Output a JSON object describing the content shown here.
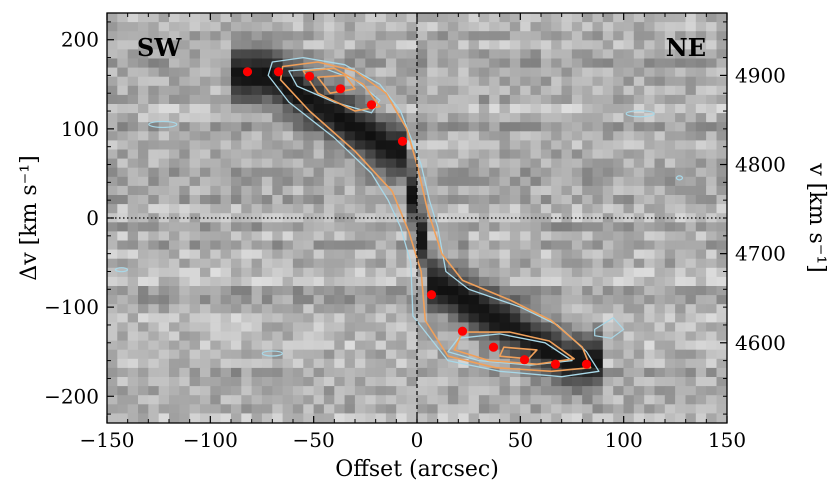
{
  "chart_data": {
    "type": "scatter",
    "title": "",
    "xlabel": "Offset (arcsec)",
    "ylabel_left": "Δv [km s⁻¹]",
    "ylabel_right": "v [km s⁻¹]",
    "xlim": [
      -150,
      150
    ],
    "ylim": [
      -230,
      230
    ],
    "y2lim": [
      4510,
      4970
    ],
    "x_ticks": [
      -150,
      -100,
      -50,
      0,
      50,
      100,
      150
    ],
    "x_tick_labels": [
      "−150",
      "−100",
      "−50",
      "0",
      "50",
      "100",
      "150"
    ],
    "y_ticks": [
      -200,
      -100,
      0,
      100,
      200
    ],
    "y_tick_labels": [
      "−200",
      "−100",
      "0",
      "100",
      "200"
    ],
    "y2_ticks": [
      4600,
      4700,
      4800,
      4900
    ],
    "y2_tick_labels": [
      "4600",
      "4700",
      "4800",
      "4900"
    ],
    "corner_labels": {
      "left": "SW",
      "right": "NE"
    },
    "reference_lines": [
      {
        "orientation": "vertical",
        "value": 0,
        "style": "dashed"
      },
      {
        "orientation": "horizontal",
        "value": 0,
        "style": "dotted"
      }
    ],
    "background": "grayscale position-velocity diagram",
    "contour_colors": {
      "data": "#a8d8e8",
      "model": "#f0a05a"
    },
    "series": [
      {
        "name": "rotation curve points",
        "color": "#ff0000",
        "points": [
          {
            "x": -82,
            "y": 164
          },
          {
            "x": -67,
            "y": 164
          },
          {
            "x": -52,
            "y": 159
          },
          {
            "x": -37,
            "y": 145
          },
          {
            "x": -22,
            "y": 127
          },
          {
            "x": -7,
            "y": 86
          },
          {
            "x": 7,
            "y": -86
          },
          {
            "x": 22,
            "y": -127
          },
          {
            "x": 37,
            "y": -145
          },
          {
            "x": 52,
            "y": -159
          },
          {
            "x": 67,
            "y": -164
          },
          {
            "x": 82,
            "y": -164
          }
        ]
      }
    ]
  }
}
